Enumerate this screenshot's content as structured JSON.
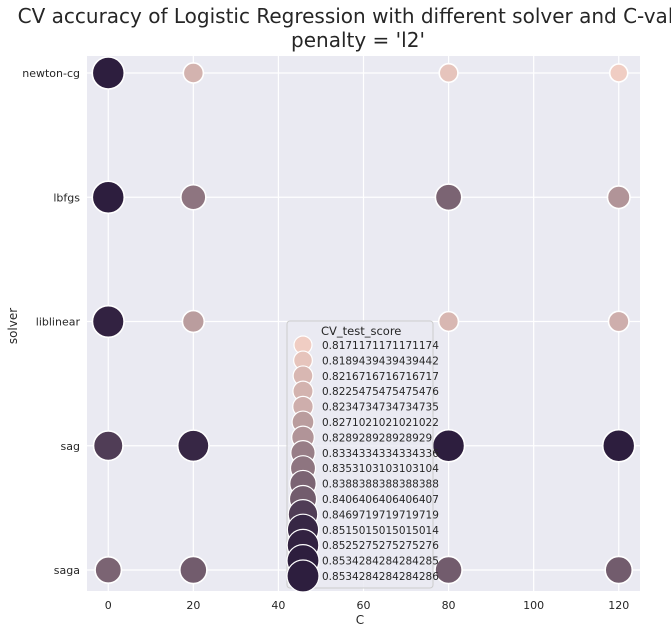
{
  "chart_data": {
    "type": "scatter",
    "title": "CV accuracy of Logistic Regression with different solver and C-value",
    "subtitle": "penalty = 'l2'",
    "xlabel": "C",
    "ylabel": "solver",
    "xlim": [
      -5,
      125
    ],
    "xticks": [
      0,
      20,
      40,
      60,
      80,
      100,
      120
    ],
    "categories": [
      "newton-cg",
      "lbfgs",
      "liblinear",
      "sag",
      "saga"
    ],
    "grid": true,
    "legend_title": "CV_test_score",
    "legend_position": "center-bottom",
    "legend_entries": [
      "0.8171171171171174",
      "0.8189439439439442",
      "0.8216716716716717",
      "0.8225475475475476",
      "0.8234734734734735",
      "0.8271021021021022",
      "0.828928928928929",
      "0.8334334334334336",
      "0.8353103103103104",
      "0.8388388388388388",
      "0.8406406406406407",
      "0.8469719719719719",
      "0.8515015015015014",
      "0.8525275275275276",
      "0.8534284284284285",
      "0.8534284284284286"
    ],
    "points": [
      {
        "solver": "newton-cg",
        "C": 0,
        "score": 0.8534284284284286
      },
      {
        "solver": "newton-cg",
        "C": 20,
        "score": 0.8225475475475476
      },
      {
        "solver": "newton-cg",
        "C": 80,
        "score": 0.8189439439439442
      },
      {
        "solver": "newton-cg",
        "C": 120,
        "score": 0.8171171171171174
      },
      {
        "solver": "lbfgs",
        "C": 0,
        "score": 0.8534284284284285
      },
      {
        "solver": "lbfgs",
        "C": 20,
        "score": 0.8353103103103104
      },
      {
        "solver": "lbfgs",
        "C": 80,
        "score": 0.8388388388388388
      },
      {
        "solver": "lbfgs",
        "C": 120,
        "score": 0.8289289289289289
      },
      {
        "solver": "liblinear",
        "C": 0,
        "score": 0.8525275275275276
      },
      {
        "solver": "liblinear",
        "C": 20,
        "score": 0.8271021021021022
      },
      {
        "solver": "liblinear",
        "C": 80,
        "score": 0.8216716716716717
      },
      {
        "solver": "liblinear",
        "C": 120,
        "score": 0.8234734734734735
      },
      {
        "solver": "sag",
        "C": 0,
        "score": 0.8469719719719719
      },
      {
        "solver": "sag",
        "C": 20,
        "score": 0.8515015015015014
      },
      {
        "solver": "sag",
        "C": 80,
        "score": 0.8534284284284286
      },
      {
        "solver": "sag",
        "C": 120,
        "score": 0.8534284284284285
      },
      {
        "solver": "saga",
        "C": 0,
        "score": 0.8388388388388388
      },
      {
        "solver": "saga",
        "C": 20,
        "score": 0.8406406406406407
      },
      {
        "solver": "saga",
        "C": 80,
        "score": 0.8406406406406407
      },
      {
        "solver": "saga",
        "C": 120,
        "score": 0.8406406406406407
      }
    ]
  }
}
